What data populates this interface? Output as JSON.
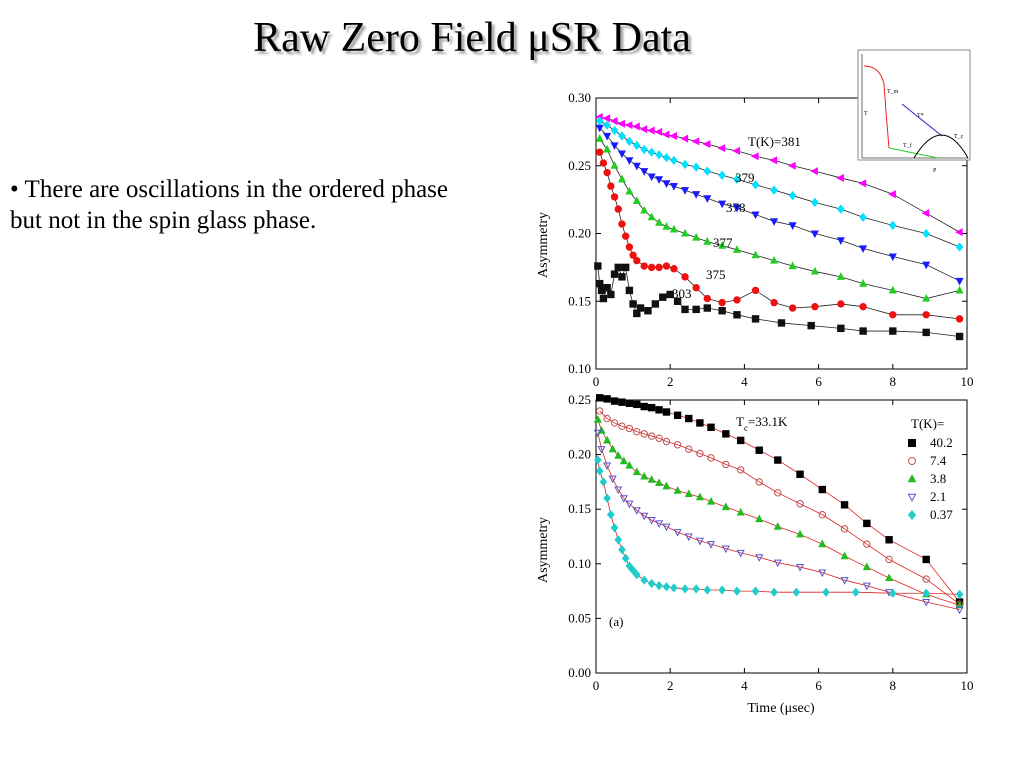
{
  "slide": {
    "title": "Raw Zero Field μSR Data",
    "bullet": "• There are oscillations in the ordered phase but not in the spin glass phase."
  },
  "chart_data": [
    {
      "type": "scatter",
      "title": "",
      "xlabel": "",
      "ylabel": "Asymmetry",
      "xlim": [
        0,
        10
      ],
      "ylim": [
        0.1,
        0.3
      ],
      "xticks": [
        0,
        2,
        4,
        6,
        8,
        10
      ],
      "yticks": [
        0.1,
        0.15,
        0.2,
        0.25,
        0.3
      ],
      "xtick_labels": [
        "0",
        "2",
        "4",
        "6",
        "8",
        "10"
      ],
      "ytick_labels": [
        "0.10",
        "0.15",
        "0.20",
        "0.25",
        "0.30"
      ],
      "legend_title": "T(K)=381",
      "series": [
        {
          "name": "381",
          "marker": "triangle-left",
          "color": "#ff00ff",
          "x": [
            0.1,
            0.3,
            0.5,
            0.7,
            0.9,
            1.1,
            1.3,
            1.5,
            1.7,
            1.9,
            2.1,
            2.4,
            2.7,
            3.0,
            3.4,
            3.8,
            4.3,
            4.8,
            5.3,
            5.9,
            6.6,
            7.2,
            8.0,
            8.9,
            9.8
          ],
          "y": [
            0.286,
            0.285,
            0.283,
            0.281,
            0.28,
            0.279,
            0.277,
            0.276,
            0.275,
            0.273,
            0.272,
            0.27,
            0.268,
            0.266,
            0.263,
            0.261,
            0.257,
            0.254,
            0.25,
            0.246,
            0.241,
            0.237,
            0.229,
            0.215,
            0.201
          ]
        },
        {
          "name": "379",
          "marker": "diamond",
          "color": "#00e0ff",
          "x": [
            0.1,
            0.3,
            0.5,
            0.7,
            0.9,
            1.1,
            1.3,
            1.5,
            1.7,
            1.9,
            2.1,
            2.4,
            2.7,
            3.0,
            3.4,
            3.8,
            4.3,
            4.8,
            5.3,
            5.9,
            6.6,
            7.2,
            8.0,
            8.9,
            9.8
          ],
          "y": [
            0.283,
            0.28,
            0.276,
            0.272,
            0.268,
            0.265,
            0.262,
            0.26,
            0.258,
            0.256,
            0.254,
            0.251,
            0.249,
            0.246,
            0.243,
            0.24,
            0.236,
            0.232,
            0.228,
            0.223,
            0.218,
            0.212,
            0.206,
            0.2,
            0.19
          ]
        },
        {
          "name": "378",
          "marker": "triangle-down",
          "color": "#1a1aff",
          "x": [
            0.1,
            0.3,
            0.5,
            0.7,
            0.9,
            1.1,
            1.3,
            1.5,
            1.7,
            1.9,
            2.1,
            2.4,
            2.7,
            3.0,
            3.4,
            3.8,
            4.3,
            4.8,
            5.3,
            5.9,
            6.6,
            7.2,
            8.0,
            8.9,
            9.8
          ],
          "y": [
            0.278,
            0.272,
            0.265,
            0.259,
            0.254,
            0.25,
            0.246,
            0.242,
            0.24,
            0.237,
            0.235,
            0.232,
            0.229,
            0.226,
            0.222,
            0.219,
            0.214,
            0.209,
            0.206,
            0.2,
            0.195,
            0.189,
            0.183,
            0.177,
            0.165
          ]
        },
        {
          "name": "377",
          "marker": "triangle-up",
          "color": "#22cc22",
          "x": [
            0.1,
            0.3,
            0.5,
            0.7,
            0.9,
            1.1,
            1.3,
            1.5,
            1.7,
            1.9,
            2.1,
            2.4,
            2.7,
            3.0,
            3.4,
            3.8,
            4.3,
            4.8,
            5.3,
            5.9,
            6.6,
            7.2,
            8.0,
            8.9,
            9.8
          ],
          "y": [
            0.27,
            0.262,
            0.25,
            0.24,
            0.231,
            0.224,
            0.217,
            0.212,
            0.208,
            0.205,
            0.203,
            0.2,
            0.197,
            0.194,
            0.191,
            0.188,
            0.184,
            0.18,
            0.176,
            0.172,
            0.168,
            0.163,
            0.158,
            0.152,
            0.158
          ]
        },
        {
          "name": "375",
          "marker": "circle",
          "color": "#ee1111",
          "x": [
            0.1,
            0.2,
            0.3,
            0.4,
            0.5,
            0.6,
            0.7,
            0.8,
            0.9,
            1.0,
            1.1,
            1.3,
            1.5,
            1.7,
            1.9,
            2.1,
            2.4,
            2.7,
            3.0,
            3.4,
            3.8,
            4.3,
            4.8,
            5.3,
            5.9,
            6.6,
            7.2,
            8.0,
            8.9,
            9.8
          ],
          "y": [
            0.26,
            0.252,
            0.245,
            0.235,
            0.227,
            0.218,
            0.207,
            0.198,
            0.19,
            0.184,
            0.18,
            0.176,
            0.175,
            0.175,
            0.176,
            0.174,
            0.168,
            0.16,
            0.152,
            0.149,
            0.151,
            0.158,
            0.149,
            0.145,
            0.146,
            0.148,
            0.146,
            0.14,
            0.14,
            0.137
          ]
        },
        {
          "name": "303",
          "marker": "square",
          "color": "#111111",
          "x": [
            0.05,
            0.1,
            0.15,
            0.2,
            0.3,
            0.4,
            0.5,
            0.6,
            0.7,
            0.8,
            0.9,
            1.0,
            1.1,
            1.2,
            1.4,
            1.6,
            1.8,
            2.0,
            2.2,
            2.4,
            2.7,
            3.0,
            3.4,
            3.8,
            4.3,
            5.0,
            5.8,
            6.6,
            7.2,
            8.0,
            8.9,
            9.8
          ],
          "y": [
            0.176,
            0.163,
            0.158,
            0.152,
            0.16,
            0.155,
            0.17,
            0.175,
            0.168,
            0.175,
            0.158,
            0.148,
            0.141,
            0.145,
            0.143,
            0.148,
            0.153,
            0.155,
            0.15,
            0.144,
            0.144,
            0.145,
            0.143,
            0.14,
            0.137,
            0.134,
            0.132,
            0.13,
            0.128,
            0.128,
            0.127,
            0.124
          ]
        }
      ],
      "annotations": [
        "379",
        "378",
        "377",
        "375",
        "303"
      ]
    },
    {
      "type": "scatter",
      "title": "T_c=33.1K",
      "xlabel": "Time (μsec)",
      "ylabel": "Asymmetry",
      "xlim": [
        0,
        10
      ],
      "ylim": [
        0.0,
        0.25
      ],
      "xticks": [
        0,
        2,
        4,
        6,
        8,
        10
      ],
      "yticks": [
        0.0,
        0.05,
        0.1,
        0.15,
        0.2,
        0.25
      ],
      "xtick_labels": [
        "0",
        "2",
        "4",
        "6",
        "8",
        "10"
      ],
      "ytick_labels": [
        "0.00",
        "0.05",
        "0.10",
        "0.15",
        "0.20",
        "0.25"
      ],
      "legend_title": "T(K)=",
      "legend_position": "top-right",
      "panel_label": "(a)",
      "series": [
        {
          "name": "40.2",
          "marker": "square",
          "color": "#000000",
          "x": [
            0.1,
            0.3,
            0.5,
            0.7,
            0.9,
            1.1,
            1.3,
            1.5,
            1.7,
            1.9,
            2.2,
            2.5,
            2.8,
            3.1,
            3.5,
            3.9,
            4.4,
            4.9,
            5.5,
            6.1,
            6.7,
            7.3,
            7.9,
            8.9,
            9.8
          ],
          "y": [
            0.252,
            0.251,
            0.249,
            0.248,
            0.247,
            0.246,
            0.244,
            0.243,
            0.241,
            0.239,
            0.236,
            0.233,
            0.229,
            0.225,
            0.219,
            0.213,
            0.204,
            0.195,
            0.182,
            0.168,
            0.154,
            0.137,
            0.122,
            0.104,
            0.065
          ]
        },
        {
          "name": "7.4",
          "marker": "circle-open",
          "color": "#c05050",
          "x": [
            0.1,
            0.3,
            0.5,
            0.7,
            0.9,
            1.1,
            1.3,
            1.5,
            1.7,
            1.9,
            2.2,
            2.5,
            2.8,
            3.1,
            3.5,
            3.9,
            4.4,
            4.9,
            5.5,
            6.1,
            6.7,
            7.3,
            7.9,
            8.9,
            9.8
          ],
          "y": [
            0.24,
            0.233,
            0.229,
            0.226,
            0.224,
            0.221,
            0.219,
            0.217,
            0.215,
            0.212,
            0.209,
            0.205,
            0.201,
            0.197,
            0.191,
            0.186,
            0.175,
            0.165,
            0.155,
            0.145,
            0.132,
            0.118,
            0.104,
            0.086,
            0.063
          ]
        },
        {
          "name": "3.8",
          "marker": "triangle-up",
          "color": "#22bb22",
          "x": [
            0.05,
            0.15,
            0.3,
            0.45,
            0.6,
            0.75,
            0.9,
            1.1,
            1.3,
            1.5,
            1.7,
            1.9,
            2.2,
            2.5,
            2.8,
            3.1,
            3.5,
            3.9,
            4.4,
            4.9,
            5.5,
            6.1,
            6.7,
            7.3,
            7.9,
            8.9,
            9.8
          ],
          "y": [
            0.232,
            0.222,
            0.213,
            0.205,
            0.199,
            0.194,
            0.19,
            0.184,
            0.18,
            0.177,
            0.174,
            0.171,
            0.167,
            0.164,
            0.161,
            0.157,
            0.152,
            0.147,
            0.141,
            0.134,
            0.127,
            0.118,
            0.107,
            0.097,
            0.087,
            0.072,
            0.062
          ]
        },
        {
          "name": "2.1",
          "marker": "triangle-down-open",
          "color": "#5555cc",
          "x": [
            0.05,
            0.15,
            0.3,
            0.45,
            0.6,
            0.75,
            0.9,
            1.1,
            1.3,
            1.5,
            1.7,
            1.9,
            2.2,
            2.5,
            2.8,
            3.1,
            3.5,
            3.9,
            4.4,
            4.9,
            5.5,
            6.1,
            6.7,
            7.3,
            7.9,
            8.9,
            9.8
          ],
          "y": [
            0.22,
            0.205,
            0.19,
            0.178,
            0.168,
            0.16,
            0.155,
            0.149,
            0.144,
            0.14,
            0.137,
            0.134,
            0.129,
            0.125,
            0.121,
            0.118,
            0.114,
            0.11,
            0.106,
            0.101,
            0.097,
            0.092,
            0.085,
            0.08,
            0.074,
            0.065,
            0.058
          ]
        },
        {
          "name": "0.37",
          "marker": "diamond",
          "color": "#22cccc",
          "x": [
            0.05,
            0.1,
            0.2,
            0.3,
            0.4,
            0.5,
            0.6,
            0.7,
            0.8,
            0.9,
            1.0,
            1.1,
            1.3,
            1.5,
            1.7,
            1.9,
            2.1,
            2.4,
            2.7,
            3.0,
            3.4,
            3.8,
            4.3,
            4.8,
            5.4,
            6.2,
            7.0,
            8.0,
            8.9,
            9.8
          ],
          "y": [
            0.195,
            0.185,
            0.175,
            0.16,
            0.145,
            0.133,
            0.122,
            0.113,
            0.105,
            0.098,
            0.094,
            0.09,
            0.085,
            0.082,
            0.08,
            0.079,
            0.078,
            0.077,
            0.077,
            0.076,
            0.076,
            0.075,
            0.075,
            0.074,
            0.074,
            0.074,
            0.074,
            0.073,
            0.073,
            0.072
          ]
        }
      ]
    },
    {
      "type": "line",
      "title": "",
      "xlabel": "P",
      "ylabel": "T",
      "annotations": [
        "T_m",
        "T*",
        "T_f",
        "T_c"
      ]
    }
  ]
}
